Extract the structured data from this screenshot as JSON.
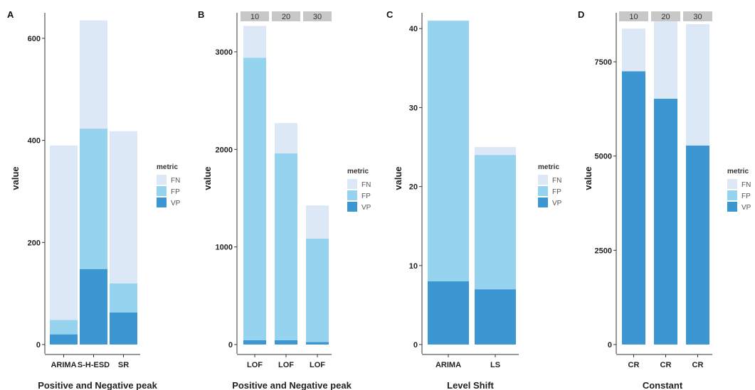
{
  "colors": {
    "FN": "#dce8f5",
    "FP": "#95d3ee",
    "VP": "#3b96d2",
    "strip": "#c8c8c8"
  },
  "legend": {
    "title": "metric",
    "items": [
      "FN",
      "FP",
      "VP"
    ]
  },
  "chart_data": [
    {
      "panel": "A",
      "type": "bar",
      "stacked": true,
      "xlabel": "Positive and Negative peak",
      "ylabel": "value",
      "categories": [
        "ARIMA",
        "S-H-ESD",
        "SR"
      ],
      "ylim": [
        0,
        650
      ],
      "yticks": [
        0,
        200,
        400,
        600
      ],
      "facets": [],
      "series": [
        {
          "name": "VP",
          "values": [
            20,
            148,
            63
          ]
        },
        {
          "name": "FP",
          "values": [
            28,
            275,
            57
          ]
        },
        {
          "name": "FN",
          "values": [
            342,
            212,
            298
          ]
        }
      ]
    },
    {
      "panel": "B",
      "type": "bar",
      "stacked": true,
      "xlabel": "Positive and Negative peak",
      "ylabel": "value",
      "categories": [
        "LOF",
        "LOF",
        "LOF"
      ],
      "ylim": [
        0,
        3400
      ],
      "yticks": [
        0,
        1000,
        2000,
        3000
      ],
      "facets": [
        "10",
        "20",
        "30"
      ],
      "series": [
        {
          "name": "VP",
          "values": [
            45,
            45,
            25
          ]
        },
        {
          "name": "FP",
          "values": [
            2895,
            1915,
            1060
          ]
        },
        {
          "name": "FN",
          "values": [
            325,
            310,
            340
          ]
        }
      ]
    },
    {
      "panel": "C",
      "type": "bar",
      "stacked": true,
      "xlabel": "Level Shift",
      "ylabel": "value",
      "categories": [
        "ARIMA",
        "LS"
      ],
      "ylim": [
        0,
        42
      ],
      "yticks": [
        0,
        10,
        20,
        30,
        40
      ],
      "facets": [],
      "series": [
        {
          "name": "VP",
          "values": [
            8,
            7
          ]
        },
        {
          "name": "FP",
          "values": [
            33,
            17
          ]
        },
        {
          "name": "FN",
          "values": [
            0,
            1
          ]
        }
      ]
    },
    {
      "panel": "D",
      "type": "bar",
      "stacked": true,
      "xlabel": "Constant",
      "ylabel": "value",
      "categories": [
        "CR",
        "CR",
        "CR"
      ],
      "ylim": [
        0,
        8800
      ],
      "yticks": [
        0,
        2500,
        5000,
        7500
      ],
      "facets": [
        "10",
        "20",
        "30"
      ],
      "series": [
        {
          "name": "VP",
          "values": [
            7250,
            6520,
            5280
          ]
        },
        {
          "name": "FP",
          "values": [
            0,
            0,
            0
          ]
        },
        {
          "name": "FN",
          "values": [
            1130,
            2060,
            3220
          ]
        }
      ]
    }
  ]
}
